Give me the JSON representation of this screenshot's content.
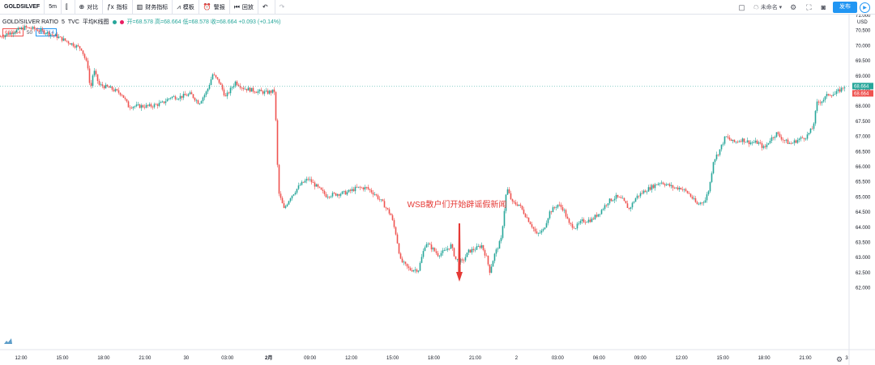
{
  "toolbar": {
    "symbol": "GOLDSILVEF",
    "interval": "5m",
    "compare": "对比",
    "indicators": "指标",
    "financials": "财务指标",
    "templates": "模板",
    "alert": "警报",
    "replay": "回放",
    "account": "未命名",
    "publish": "发布"
  },
  "legend": {
    "title": "GOLD/SILVER RATIO",
    "interval": "5",
    "source": "TVC",
    "style": "平均K线图",
    "ohlc": "开=68.578 高=68.664 低=68.578 收=68.664 +0.093 (+0.14%)",
    "bid": "68.664",
    "spread": "50",
    "ask": "68.714"
  },
  "colors": {
    "up": "#26a69a",
    "down": "#ef5350",
    "accent": "#2196f3",
    "annotation": "#e53935"
  },
  "chart_data": {
    "type": "candlestick",
    "title": "GOLD/SILVER RATIO",
    "y_axis_unit": "USD",
    "ylim": [
      61.75,
      71.25
    ],
    "y_ticks": [
      "71.000",
      "70.500",
      "70.000",
      "69.500",
      "69.000",
      "68.500",
      "68.000",
      "67.500",
      "67.000",
      "66.500",
      "66.000",
      "65.500",
      "65.000",
      "64.500",
      "64.000",
      "63.500",
      "63.000",
      "62.500",
      "62.000"
    ],
    "x_ticks": [
      "12:00",
      "15:00",
      "18:00",
      "21:00",
      "30",
      "03:00",
      "2月",
      "09:00",
      "12:00",
      "15:00",
      "18:00",
      "21:00",
      "2",
      "03:00",
      "06:00",
      "09:00",
      "12:00",
      "15:00",
      "18:00",
      "21:00",
      "3"
    ],
    "price_path": [
      [
        0,
        70.3
      ],
      [
        15,
        70.45
      ],
      [
        30,
        70.6
      ],
      [
        42,
        70.55
      ],
      [
        55,
        70.45
      ],
      [
        70,
        70.3
      ],
      [
        85,
        70.1
      ],
      [
        100,
        69.9
      ],
      [
        108,
        69.3
      ],
      [
        111,
        68.5
      ],
      [
        115,
        69.2
      ],
      [
        122,
        68.7
      ],
      [
        135,
        68.6
      ],
      [
        150,
        68.4
      ],
      [
        158,
        68.0
      ],
      [
        170,
        68.0
      ],
      [
        185,
        68.0
      ],
      [
        200,
        68.1
      ],
      [
        210,
        68.3
      ],
      [
        220,
        68.3
      ],
      [
        235,
        68.4
      ],
      [
        245,
        68.1
      ],
      [
        255,
        68.5
      ],
      [
        262,
        69.05
      ],
      [
        270,
        68.8
      ],
      [
        278,
        68.3
      ],
      [
        290,
        68.8
      ],
      [
        300,
        68.6
      ],
      [
        315,
        68.5
      ],
      [
        328,
        68.45
      ],
      [
        339,
        68.5
      ],
      [
        341,
        66.5
      ],
      [
        344,
        65.1
      ],
      [
        350,
        64.6
      ],
      [
        358,
        65.0
      ],
      [
        370,
        65.4
      ],
      [
        380,
        65.6
      ],
      [
        392,
        65.3
      ],
      [
        402,
        65.05
      ],
      [
        415,
        65.1
      ],
      [
        428,
        65.15
      ],
      [
        440,
        65.3
      ],
      [
        452,
        65.3
      ],
      [
        462,
        65.1
      ],
      [
        472,
        64.8
      ],
      [
        482,
        64.4
      ],
      [
        488,
        63.8
      ],
      [
        494,
        62.9
      ],
      [
        505,
        62.6
      ],
      [
        516,
        62.6
      ],
      [
        525,
        63.5
      ],
      [
        533,
        63.3
      ],
      [
        540,
        63.1
      ],
      [
        548,
        63.2
      ],
      [
        556,
        63.4
      ],
      [
        562,
        62.95
      ],
      [
        570,
        62.85
      ],
      [
        578,
        63.2
      ],
      [
        587,
        63.3
      ],
      [
        594,
        63.4
      ],
      [
        600,
        63.0
      ],
      [
        604,
        62.55
      ],
      [
        610,
        63.1
      ],
      [
        618,
        63.6
      ],
      [
        625,
        65.3
      ],
      [
        632,
        64.8
      ],
      [
        640,
        64.75
      ],
      [
        648,
        64.4
      ],
      [
        655,
        64.1
      ],
      [
        662,
        63.75
      ],
      [
        670,
        63.9
      ],
      [
        678,
        64.5
      ],
      [
        688,
        64.75
      ],
      [
        695,
        64.6
      ],
      [
        702,
        64.1
      ],
      [
        710,
        64.0
      ],
      [
        718,
        64.2
      ],
      [
        730,
        64.25
      ],
      [
        740,
        64.5
      ],
      [
        750,
        64.85
      ],
      [
        760,
        65.0
      ],
      [
        768,
        64.9
      ],
      [
        776,
        64.6
      ],
      [
        785,
        65.0
      ],
      [
        795,
        65.2
      ],
      [
        805,
        65.35
      ],
      [
        815,
        65.5
      ],
      [
        823,
        65.4
      ],
      [
        832,
        65.3
      ],
      [
        840,
        65.3
      ],
      [
        850,
        65.1
      ],
      [
        860,
        64.75
      ],
      [
        870,
        64.9
      ],
      [
        875,
        65.3
      ],
      [
        880,
        66.2
      ],
      [
        887,
        66.5
      ],
      [
        895,
        67.0
      ],
      [
        905,
        66.8
      ],
      [
        915,
        66.9
      ],
      [
        925,
        66.8
      ],
      [
        935,
        66.8
      ],
      [
        943,
        66.6
      ],
      [
        950,
        66.9
      ],
      [
        958,
        67.1
      ],
      [
        966,
        66.9
      ],
      [
        975,
        66.75
      ],
      [
        985,
        66.9
      ],
      [
        995,
        67.0
      ],
      [
        1003,
        67.3
      ],
      [
        1008,
        68.1
      ],
      [
        1015,
        68.2
      ],
      [
        1022,
        68.4
      ],
      [
        1030,
        68.4
      ],
      [
        1042,
        68.66
      ]
    ],
    "last_price": "68.664",
    "annotations": [
      {
        "text": "WSB散户们开始辟谣假新闻"
      }
    ]
  }
}
